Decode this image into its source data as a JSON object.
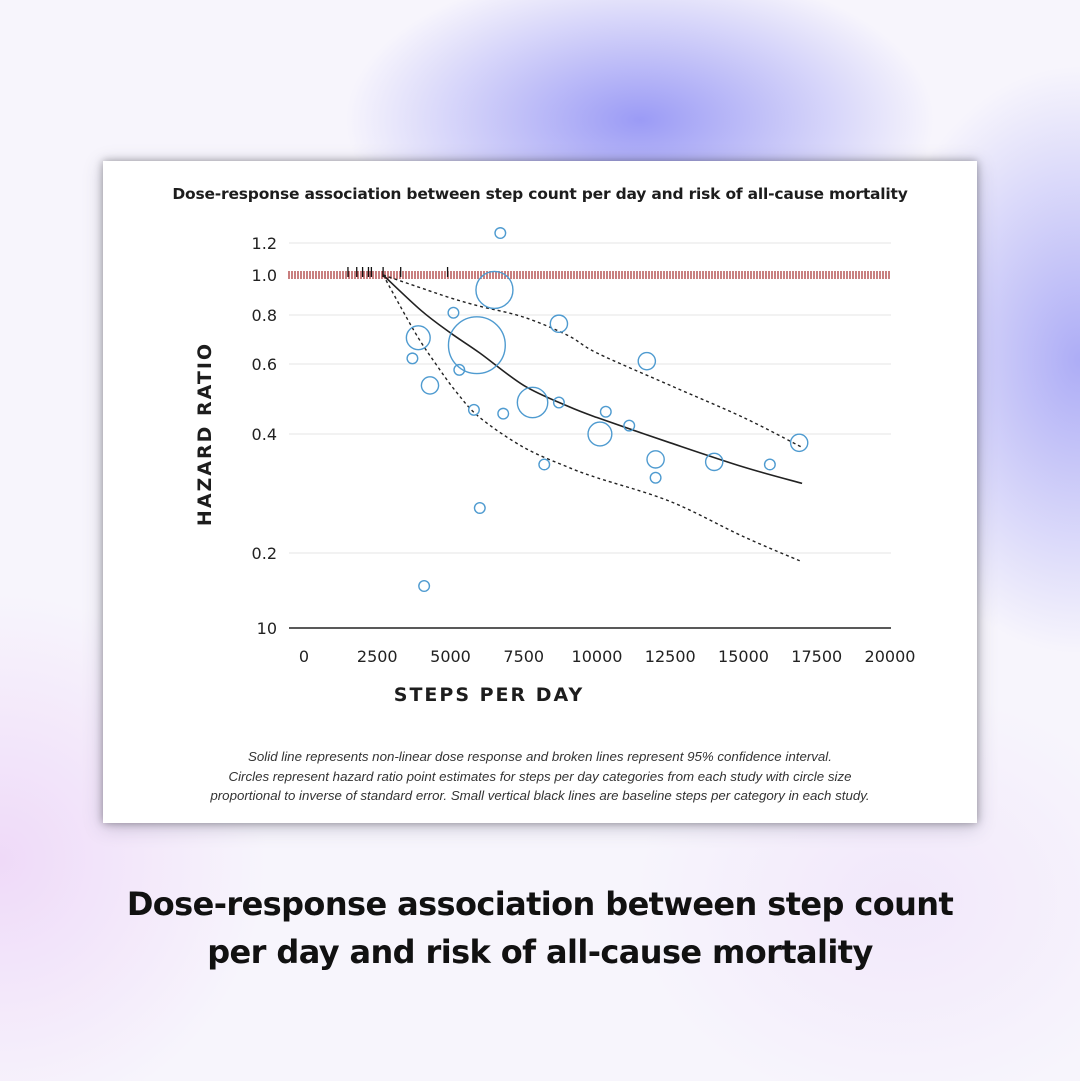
{
  "chart_data": {
    "type": "scatter",
    "title": "Dose-response association between step count per day and risk of all-cause mortality",
    "xlabel": "STEPS PER DAY",
    "ylabel": "HAZARD RATIO",
    "x_ticks": [
      "0",
      "2500",
      "5000",
      "7500",
      "10000",
      "12500",
      "15000",
      "17500",
      "20000"
    ],
    "y_ticks": [
      "1.2",
      "1.0",
      "0.8",
      "0.6",
      "0.4",
      "0.2",
      "10"
    ],
    "xlim": [
      0,
      20000
    ],
    "y_scale": "log",
    "reference_line": {
      "y": 1.0,
      "style": "hatched",
      "color": "#a52a2a"
    },
    "grid": true,
    "series": [
      {
        "kind": "curve",
        "style": "solid",
        "x": [
          2700,
          4000,
          5000,
          6000,
          7500,
          9000,
          10000,
          12500,
          15000,
          17000
        ],
        "y": [
          1.0,
          0.82,
          0.72,
          0.64,
          0.53,
          0.47,
          0.44,
          0.38,
          0.33,
          0.3
        ]
      },
      {
        "kind": "curve",
        "style": "dashed",
        "x": [
          2700,
          4000,
          5000,
          6000,
          7500,
          9000,
          10000,
          12500,
          15000,
          17000
        ],
        "y": [
          1.0,
          0.93,
          0.88,
          0.84,
          0.79,
          0.71,
          0.64,
          0.53,
          0.44,
          0.37
        ]
      },
      {
        "kind": "curve",
        "style": "dashed",
        "x": [
          2700,
          3800,
          4500,
          5200,
          6000,
          7500,
          9000,
          10000,
          12500,
          15000,
          17000
        ],
        "y": [
          1.0,
          0.72,
          0.6,
          0.51,
          0.44,
          0.37,
          0.33,
          0.31,
          0.27,
          0.22,
          0.19
        ]
      },
      {
        "kind": "points",
        "color": "#4f9bd0",
        "points": [
          {
            "x": 6700,
            "y": 1.27,
            "w": 1
          },
          {
            "x": 6500,
            "y": 0.92,
            "w": 5
          },
          {
            "x": 5100,
            "y": 0.81,
            "w": 1
          },
          {
            "x": 8700,
            "y": 0.76,
            "w": 2
          },
          {
            "x": 3900,
            "y": 0.7,
            "w": 3
          },
          {
            "x": 5900,
            "y": 0.67,
            "w": 8
          },
          {
            "x": 3700,
            "y": 0.62,
            "w": 1
          },
          {
            "x": 11700,
            "y": 0.61,
            "w": 2
          },
          {
            "x": 5300,
            "y": 0.58,
            "w": 1
          },
          {
            "x": 4300,
            "y": 0.53,
            "w": 2
          },
          {
            "x": 7800,
            "y": 0.48,
            "w": 4
          },
          {
            "x": 8700,
            "y": 0.48,
            "w": 1
          },
          {
            "x": 5800,
            "y": 0.46,
            "w": 1
          },
          {
            "x": 6800,
            "y": 0.45,
            "w": 1
          },
          {
            "x": 10300,
            "y": 0.455,
            "w": 1
          },
          {
            "x": 11100,
            "y": 0.42,
            "w": 1
          },
          {
            "x": 10100,
            "y": 0.4,
            "w": 3
          },
          {
            "x": 12000,
            "y": 0.345,
            "w": 2
          },
          {
            "x": 8200,
            "y": 0.335,
            "w": 1
          },
          {
            "x": 14000,
            "y": 0.34,
            "w": 2
          },
          {
            "x": 15900,
            "y": 0.335,
            "w": 1
          },
          {
            "x": 16900,
            "y": 0.38,
            "w": 2
          },
          {
            "x": 12000,
            "y": 0.31,
            "w": 1
          },
          {
            "x": 6000,
            "y": 0.26,
            "w": 1
          },
          {
            "x": 4100,
            "y": 0.165,
            "w": 1
          }
        ]
      },
      {
        "kind": "baseline_ticks",
        "x": [
          1500,
          1800,
          2000,
          2200,
          2300,
          2700,
          3300,
          4900
        ]
      }
    ]
  },
  "footnote": [
    "Solid line represents non-linear dose response and broken lines represent 95% confidence interval.",
    "Circles represent hazard ratio point estimates for steps per day categories from each study with circle size",
    "proportional to inverse of standard error. Small vertical black lines are baseline steps per category in each study."
  ],
  "caption": [
    "Dose-response association between step count",
    "per day and risk of all-cause mortality"
  ]
}
